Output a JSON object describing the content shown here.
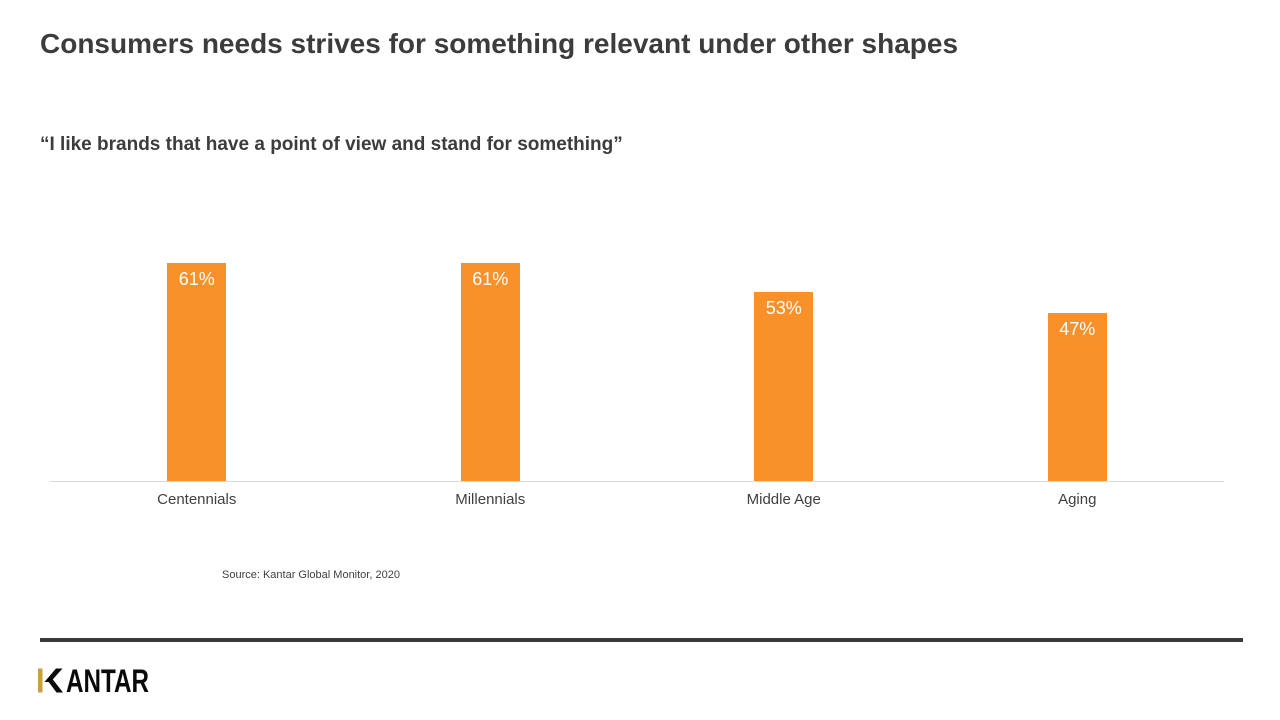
{
  "slide": {
    "title": "Consumers needs strives for something relevant under other shapes",
    "subtitle": "“I like brands that have a point of view and stand for something”",
    "source": "Source: Kantar Global Monitor, 2020"
  },
  "footer": {
    "logo": {
      "text": "KANTAR",
      "text_after_k": "ANTAR"
    }
  },
  "colors": {
    "bar_color": "#F9912B",
    "title_text": "#3C3C3C",
    "axis_line": "#D9D9D9",
    "footer_rule": "#3A3A3A",
    "logo_gold": "#C5A13F",
    "value_label": "#FFFFFF",
    "category_text": "#404040"
  },
  "chart_data": {
    "type": "bar",
    "categories": [
      "Centennials",
      "Millennials",
      "Middle Age",
      "Aging"
    ],
    "values": [
      61,
      61,
      53,
      47
    ],
    "value_labels": [
      "61%",
      "61%",
      "53%",
      "47%"
    ],
    "title": "",
    "xlabel": "",
    "ylabel": "",
    "ylim": [
      0,
      73
    ],
    "grid": false,
    "legend": false,
    "value_label_position": "inside-top",
    "bar_color": "#F9912B"
  }
}
